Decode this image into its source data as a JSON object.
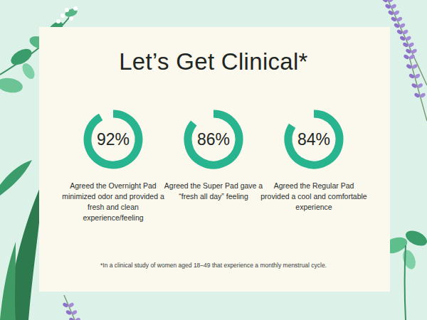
{
  "chart_data": {
    "type": "donut",
    "title": "Let’s Get Clinical*",
    "categories": [
      "Agreed the Overnight Pad minimized odor and provided a fresh and clean experience/feeling",
      "Agreed the Super Pad gave a “fresh all day” feeling",
      "Agreed the Regular Pad provided a cool and comfortable experience"
    ],
    "values": [
      92,
      86,
      84
    ],
    "value_labels": [
      "92%",
      "86%",
      "84%"
    ],
    "ylim": [
      0,
      100
    ],
    "color": "#27b48e",
    "data_labels": true,
    "annotations": [
      "*In a clinical study of women aged 18–49 that experience a monthly menstrual cycle."
    ]
  }
}
